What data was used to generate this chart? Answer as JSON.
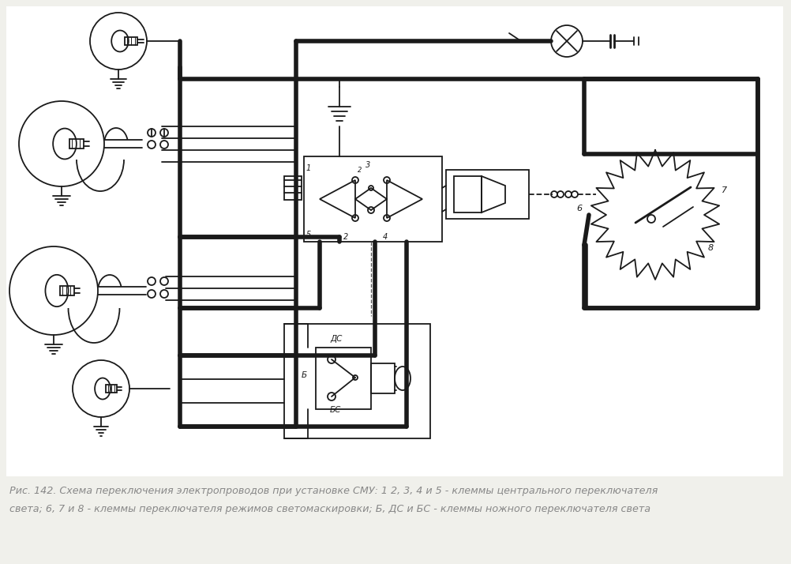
{
  "background_color": "#f0f0eb",
  "white_area": "#ffffff",
  "caption_line1": "Рис. 142. Схема переключения электропроводов при установке СМУ: 1 2, 3, 4 и 5 - клеммы центрального переключателя",
  "caption_line2": "света; 6, 7 и 8 - клеммы переключателя режимов светомаскировки; Б, ДС и БС - клеммы ножного переключателя света",
  "fig_width": 10.02,
  "fig_height": 7.14,
  "dpi": 100,
  "line_color": "#1a1a1a",
  "thick_lw": 4.0,
  "thin_lw": 1.3,
  "med_lw": 2.0,
  "caption_fontsize": 9.2,
  "caption_color": "#888888"
}
